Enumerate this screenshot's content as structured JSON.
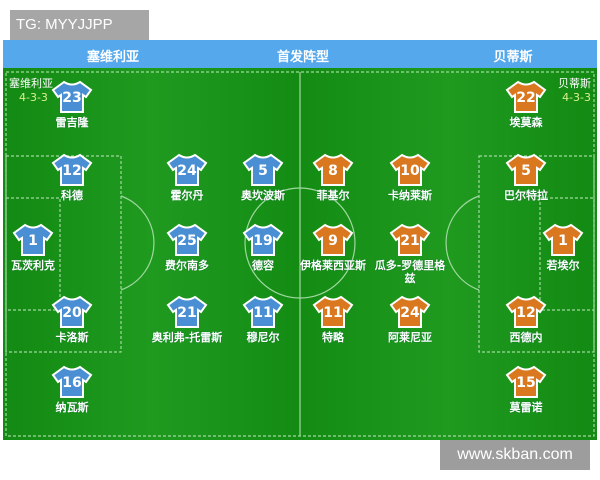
{
  "watermark_top": "TG: MYYJJPP",
  "watermark_bottom": "www.skban.com",
  "header": {
    "home": "塞维利亚",
    "center": "首发阵型",
    "away": "贝蒂斯"
  },
  "colors": {
    "home": "#4a8fd4",
    "away": "#d9781f",
    "header": "#55a8ec",
    "pitch": "#1a931a"
  },
  "home": {
    "name": "塞维利亚",
    "formation": "4-3-3",
    "players": [
      {
        "number": "23",
        "name": "雷吉隆"
      },
      {
        "number": "12",
        "name": "科德"
      },
      {
        "number": "1",
        "name": "瓦茨利克"
      },
      {
        "number": "20",
        "name": "卡洛斯"
      },
      {
        "number": "16",
        "name": "纳瓦斯"
      },
      {
        "number": "24",
        "name": "霍尔丹"
      },
      {
        "number": "25",
        "name": "费尔南多"
      },
      {
        "number": "21",
        "name": "奥利弗-托雷斯"
      },
      {
        "number": "5",
        "name": "奥坎波斯"
      },
      {
        "number": "19",
        "name": "德容"
      },
      {
        "number": "11",
        "name": "穆尼尔"
      }
    ]
  },
  "away": {
    "name": "贝蒂斯",
    "formation": "4-3-3",
    "players": [
      {
        "number": "8",
        "name": "菲基尔"
      },
      {
        "number": "9",
        "name": "伊格莱西亚斯"
      },
      {
        "number": "11",
        "name": "特略"
      },
      {
        "number": "10",
        "name": "卡纳莱斯"
      },
      {
        "number": "21",
        "name": "瓜多-罗德里格兹"
      },
      {
        "number": "24",
        "name": "阿莱尼亚"
      },
      {
        "number": "22",
        "name": "埃莫森"
      },
      {
        "number": "5",
        "name": "巴尔特拉"
      },
      {
        "number": "1",
        "name": "若埃尔"
      },
      {
        "number": "12",
        "name": "西德内"
      },
      {
        "number": "15",
        "name": "莫雷诺"
      }
    ]
  }
}
